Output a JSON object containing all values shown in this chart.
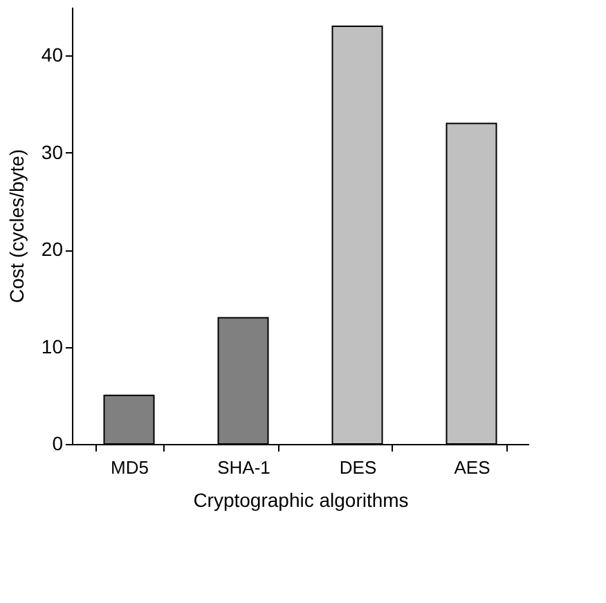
{
  "chart_data": {
    "type": "bar",
    "xlabel": "Cryptographic algorithms",
    "ylabel": "Cost (cycles/byte)",
    "categories": [
      "MD5",
      "SHA-1",
      "DES",
      "AES"
    ],
    "values": [
      5,
      13,
      43,
      33
    ],
    "colors": [
      "#808080",
      "#808080",
      "#c0c0c0",
      "#c0c0c0"
    ],
    "ylim": [
      0,
      45
    ],
    "yticks": [
      0,
      10,
      20,
      30,
      40
    ],
    "grid": false
  }
}
